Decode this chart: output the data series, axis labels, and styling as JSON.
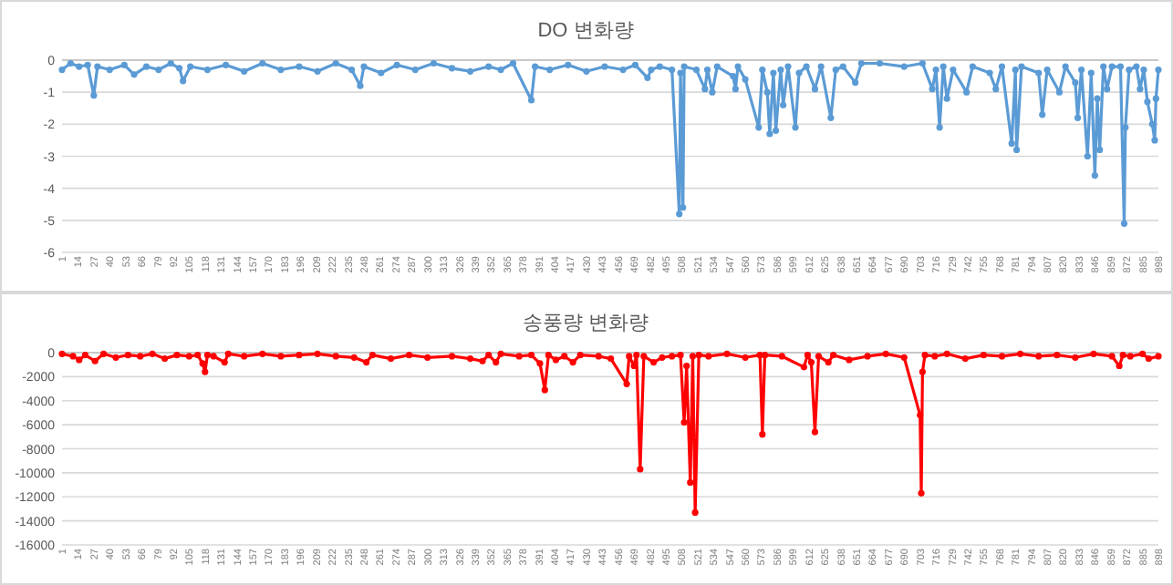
{
  "chart_data": [
    {
      "type": "line",
      "title": "DO 변화량",
      "marker": "circle",
      "grid": "y",
      "xlim": [
        1,
        898
      ],
      "ylim": [
        -6,
        0
      ],
      "yticks": [
        0,
        -1,
        -2,
        -3,
        -4,
        -5,
        -6
      ],
      "xticks": [
        1,
        14,
        27,
        40,
        53,
        66,
        79,
        92,
        105,
        118,
        131,
        144,
        157,
        170,
        183,
        196,
        209,
        222,
        235,
        248,
        261,
        274,
        287,
        300,
        313,
        326,
        339,
        352,
        365,
        378,
        391,
        404,
        417,
        430,
        443,
        456,
        469,
        482,
        495,
        508,
        521,
        534,
        547,
        560,
        573,
        586,
        599,
        612,
        625,
        638,
        651,
        664,
        677,
        690,
        703,
        716,
        729,
        742,
        755,
        768,
        781,
        794,
        807,
        820,
        833,
        846,
        859,
        872,
        885,
        898
      ],
      "series": [
        {
          "color": "#5b9bd5",
          "x": [
            1,
            8,
            15,
            22,
            27,
            30,
            40,
            52,
            60,
            70,
            80,
            90,
            97,
            100,
            106,
            120,
            135,
            150,
            165,
            180,
            195,
            210,
            225,
            238,
            245,
            248,
            262,
            275,
            290,
            305,
            320,
            335,
            350,
            360,
            370,
            385,
            388,
            400,
            415,
            430,
            445,
            460,
            470,
            480,
            483,
            490,
            500,
            506,
            507,
            509,
            510,
            520,
            527,
            529,
            533,
            537,
            550,
            552,
            554,
            560,
            571,
            574,
            578,
            580,
            583,
            585,
            589,
            591,
            595,
            601,
            604,
            610,
            617,
            622,
            630,
            634,
            640,
            650,
            655,
            670,
            690,
            705,
            713,
            716,
            719,
            722,
            725,
            730,
            741,
            746,
            760,
            765,
            770,
            778,
            781,
            782,
            786,
            800,
            803,
            807,
            817,
            822,
            830,
            832,
            835,
            840,
            843,
            846,
            848,
            850,
            853,
            856,
            860,
            867,
            870,
            871,
            874,
            880,
            883,
            886,
            889,
            893,
            895,
            896,
            898
          ],
          "values": [
            -0.3,
            -0.1,
            -0.2,
            -0.15,
            -1.1,
            -0.2,
            -0.3,
            -0.15,
            -0.45,
            -0.2,
            -0.3,
            -0.1,
            -0.25,
            -0.65,
            -0.2,
            -0.3,
            -0.15,
            -0.35,
            -0.1,
            -0.3,
            -0.2,
            -0.35,
            -0.1,
            -0.3,
            -0.8,
            -0.2,
            -0.4,
            -0.15,
            -0.3,
            -0.1,
            -0.25,
            -0.35,
            -0.2,
            -0.3,
            -0.1,
            -1.25,
            -0.2,
            -0.3,
            -0.15,
            -0.35,
            -0.2,
            -0.3,
            -0.15,
            -0.55,
            -0.3,
            -0.2,
            -0.3,
            -4.8,
            -0.4,
            -4.6,
            -0.2,
            -0.3,
            -0.9,
            -0.3,
            -1.0,
            -0.2,
            -0.5,
            -0.9,
            -0.2,
            -0.6,
            -2.1,
            -0.3,
            -1.0,
            -2.3,
            -0.4,
            -2.2,
            -0.3,
            -1.4,
            -0.2,
            -2.1,
            -0.4,
            -0.2,
            -0.9,
            -0.2,
            -1.8,
            -0.3,
            -0.2,
            -0.7,
            -0.1,
            -0.1,
            -0.2,
            -0.1,
            -0.9,
            -0.3,
            -2.1,
            -0.2,
            -1.2,
            -0.3,
            -1.0,
            -0.2,
            -0.4,
            -0.9,
            -0.2,
            -2.6,
            -0.3,
            -2.8,
            -0.2,
            -0.4,
            -1.7,
            -0.3,
            -1.0,
            -0.2,
            -0.7,
            -1.8,
            -0.3,
            -3.0,
            -0.4,
            -3.6,
            -1.2,
            -2.8,
            -0.2,
            -0.9,
            -0.2,
            -0.2,
            -5.1,
            -2.1,
            -0.3,
            -0.2,
            -0.9,
            -0.3,
            -1.3,
            -2.0,
            -2.5,
            -1.2,
            -0.3
          ]
        }
      ]
    },
    {
      "type": "line",
      "title": "송풍량 변화량",
      "marker": "circle",
      "grid": "y",
      "xlim": [
        1,
        898
      ],
      "ylim": [
        -16000,
        0
      ],
      "yticks": [
        0,
        -2000,
        -4000,
        -6000,
        -8000,
        -10000,
        -12000,
        -14000,
        -16000
      ],
      "xticks": [
        1,
        14,
        27,
        40,
        53,
        66,
        79,
        92,
        105,
        118,
        131,
        144,
        157,
        170,
        183,
        196,
        209,
        222,
        235,
        248,
        261,
        274,
        287,
        300,
        313,
        326,
        339,
        352,
        365,
        378,
        391,
        404,
        417,
        430,
        443,
        456,
        469,
        482,
        495,
        508,
        521,
        534,
        547,
        560,
        573,
        586,
        599,
        612,
        625,
        638,
        651,
        664,
        677,
        690,
        703,
        716,
        729,
        742,
        755,
        768,
        781,
        794,
        807,
        820,
        833,
        846,
        859,
        872,
        885,
        898
      ],
      "series": [
        {
          "color": "#ff0000",
          "x": [
            1,
            10,
            15,
            20,
            28,
            35,
            45,
            55,
            65,
            75,
            85,
            95,
            105,
            112,
            116,
            118,
            120,
            125,
            134,
            137,
            150,
            165,
            180,
            195,
            210,
            225,
            240,
            250,
            255,
            270,
            285,
            300,
            320,
            335,
            345,
            350,
            356,
            360,
            375,
            385,
            392,
            396,
            399,
            405,
            412,
            419,
            425,
            440,
            450,
            463,
            465,
            469,
            471,
            474,
            477,
            485,
            492,
            500,
            507,
            510,
            512,
            515,
            517,
            519,
            522,
            530,
            545,
            560,
            572,
            574,
            576,
            590,
            608,
            611,
            614,
            617,
            620,
            628,
            632,
            645,
            660,
            675,
            690,
            703,
            704,
            705,
            707,
            715,
            725,
            740,
            755,
            770,
            785,
            800,
            815,
            830,
            845,
            860,
            866,
            869,
            875,
            885,
            890,
            898
          ],
          "values": [
            -100,
            -300,
            -600,
            -200,
            -700,
            -100,
            -400,
            -200,
            -300,
            -100,
            -500,
            -200,
            -300,
            -200,
            -900,
            -1600,
            -200,
            -300,
            -800,
            -100,
            -300,
            -100,
            -300,
            -200,
            -100,
            -300,
            -400,
            -800,
            -200,
            -500,
            -200,
            -400,
            -300,
            -500,
            -700,
            -200,
            -800,
            -100,
            -300,
            -200,
            -900,
            -3100,
            -200,
            -600,
            -300,
            -800,
            -200,
            -300,
            -500,
            -2600,
            -300,
            -1100,
            -200,
            -9700,
            -300,
            -800,
            -400,
            -300,
            -200,
            -5800,
            -1100,
            -10800,
            -300,
            -13300,
            -200,
            -300,
            -100,
            -400,
            -200,
            -6800,
            -200,
            -300,
            -1200,
            -200,
            -800,
            -6600,
            -300,
            -800,
            -200,
            -600,
            -300,
            -100,
            -400,
            -5200,
            -11700,
            -1600,
            -200,
            -300,
            -100,
            -500,
            -200,
            -300,
            -100,
            -300,
            -200,
            -400,
            -100,
            -300,
            -1100,
            -200,
            -300,
            -100,
            -500,
            -300
          ]
        }
      ]
    }
  ]
}
